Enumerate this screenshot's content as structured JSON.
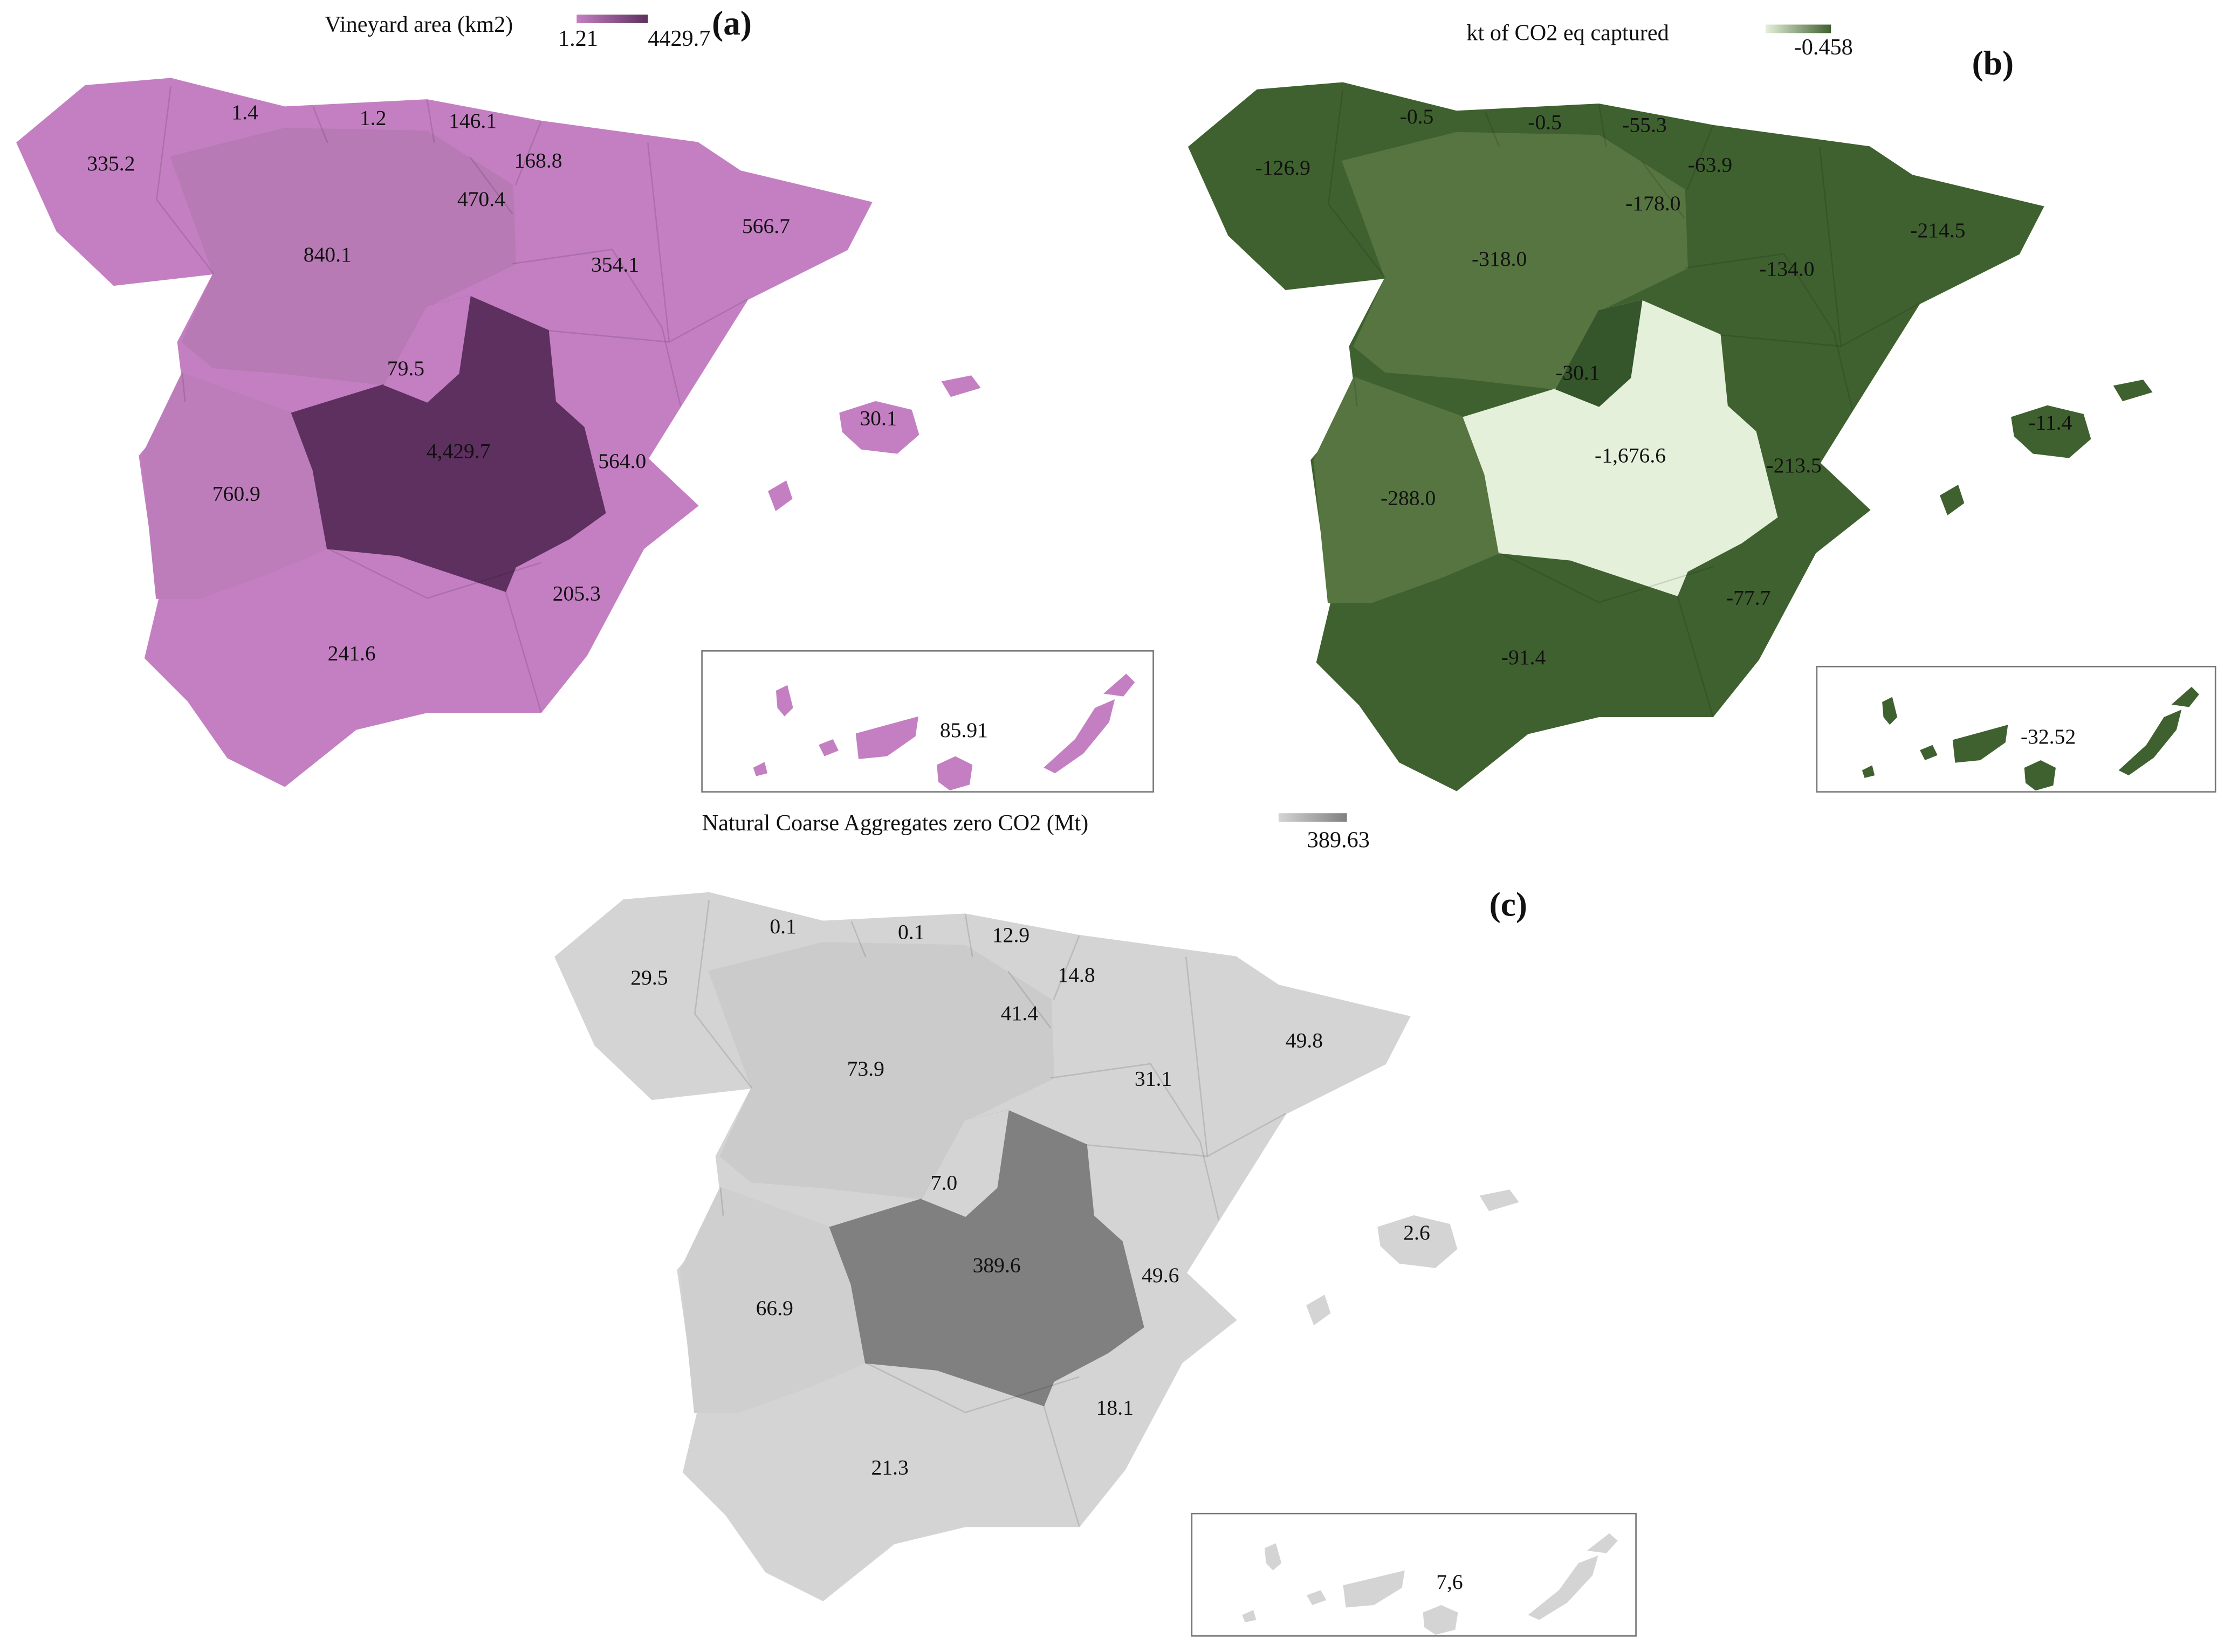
{
  "maps": [
    {
      "panel": "(a)",
      "legend": {
        "title": "Vineyard area (km2)",
        "labels": [
          "1.21",
          "4429.7"
        ]
      },
      "colors": {
        "base": "#c47fc2",
        "cyl": "#b77ab4",
        "ext": "#bd7dbb",
        "clm": "#5e3060",
        "madrid": "#c47fc2"
      },
      "region_labels": [
        "335.2",
        "1.4",
        "1.2",
        "146.1",
        "168.8",
        "470.4",
        "840.1",
        "354.1",
        "566.7",
        "79.5",
        "30.1",
        "4,429.7",
        "564.0",
        "760.9",
        "205.3",
        "241.6",
        "85.91"
      ]
    },
    {
      "panel": "(b)",
      "legend": {
        "title": "kt of CO2 eq captured",
        "labels": [
          "-0.458"
        ]
      },
      "colors": {
        "base": "#3f612f",
        "cyl": "#567541",
        "ext": "#567541",
        "clm": "#e4f0da",
        "madrid": "#35552a"
      },
      "region_labels": [
        "-126.9",
        "-0.5",
        "-0.5",
        "-55.3",
        "-63.9",
        "-178.0",
        "-318.0",
        "-134.0",
        "-214.5",
        "-30.1",
        "-11.4",
        "-1,676.6",
        "-213.5",
        "-288.0",
        "-77.7",
        "-91.4",
        "-32.52"
      ]
    },
    {
      "panel": "(c)",
      "legend": {
        "title": "Natural Coarse Aggregates zero CO2 (Mt)",
        "labels": [
          "389.63"
        ]
      },
      "colors": {
        "base": "#d4d4d4",
        "cyl": "#cbcbcb",
        "ext": "#cfcfcf",
        "clm": "#808080",
        "madrid": "#d4d4d4"
      },
      "region_labels": [
        "29.5",
        "0.1",
        "0.1",
        "12.9",
        "14.8",
        "41.4",
        "73.9",
        "31.1",
        "49.8",
        "7.0",
        "2.6",
        "389.6",
        "49.6",
        "66.9",
        "18.1",
        "21.3",
        "7,6"
      ]
    }
  ]
}
